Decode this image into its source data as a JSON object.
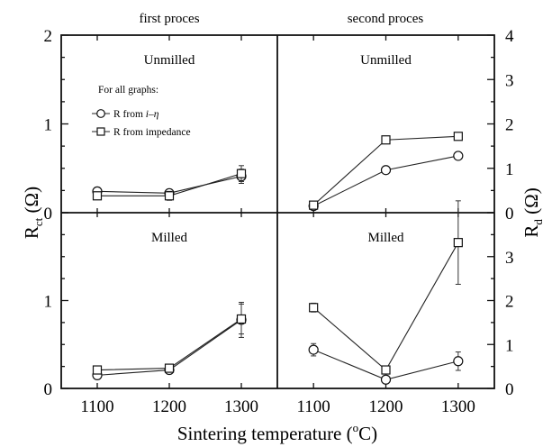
{
  "chart_data": {
    "type": "line",
    "xlabel": "Sintering temperature (°C)",
    "xlabel_main": "Sintering temperature (",
    "xlabel_sup": "o",
    "xlabel_tail": "C)",
    "ylabel_left": "R",
    "ylabel_left_sub": "ct",
    "ylabel_left_unit": " (Ω)",
    "ylabel_right": "R",
    "ylabel_right_sub": "d",
    "ylabel_right_unit": " (Ω)",
    "x_ticks": [
      "1100",
      "1200",
      "1300"
    ],
    "x_values": [
      1100,
      1200,
      1300
    ],
    "xlim": [
      1050,
      1350
    ],
    "column_titles": [
      "first proces",
      "second proces"
    ],
    "legend": {
      "title": "For all graphs:",
      "placement": "upper-left panel",
      "entries": [
        {
          "marker": "circle",
          "label_prefix": "R from ",
          "label_italic": "i–η"
        },
        {
          "marker": "square",
          "label_prefix": "R from impedance",
          "label_italic": ""
        }
      ]
    },
    "panels": [
      {
        "title": "Unmilled",
        "column": "first proces",
        "axis": "left",
        "ylim": [
          0,
          1
        ],
        "series": [
          {
            "marker": "circle",
            "values": [
              0.24,
              0.22,
              0.41
            ],
            "errors": [
              0.04,
              0.04,
              0.08
            ]
          },
          {
            "marker": "square",
            "values": [
              0.19,
              0.19,
              0.44
            ],
            "errors": [
              0.04,
              0.05,
              0.09
            ]
          }
        ]
      },
      {
        "title": "Unmilled",
        "column": "second proces",
        "axis": "right",
        "ylim": [
          0,
          2
        ],
        "series": [
          {
            "marker": "circle",
            "values": [
              0.15,
              0.96,
              1.28
            ],
            "errors": [
              0.03,
              0.03,
              0.03
            ]
          },
          {
            "marker": "square",
            "values": [
              0.17,
              1.64,
              1.72
            ],
            "errors": [
              0.03,
              0.05,
              0.05
            ]
          }
        ]
      },
      {
        "title": "Milled",
        "column": "first proces",
        "axis": "left",
        "ylim": [
          0,
          1
        ],
        "series": [
          {
            "marker": "circle",
            "values": [
              0.15,
              0.21,
              0.78
            ],
            "errors": [
              0.03,
              0.03,
              0.2
            ]
          },
          {
            "marker": "square",
            "values": [
              0.21,
              0.23,
              0.79
            ],
            "errors": [
              0.03,
              0.03,
              0.17
            ]
          }
        ]
      },
      {
        "title": "Milled",
        "column": "second proces",
        "axis": "right",
        "ylim": [
          0,
          4
        ],
        "series": [
          {
            "marker": "circle",
            "values": [
              0.88,
              0.2,
              0.62
            ],
            "errors": [
              0.14,
              0.05,
              0.21
            ]
          },
          {
            "marker": "square",
            "values": [
              1.84,
              0.42,
              3.32
            ],
            "errors": [
              0.1,
              0.06,
              0.95
            ]
          }
        ]
      }
    ],
    "y_ticks_left_top": [
      "1",
      "2"
    ],
    "y_ticks_left_bottom": [
      "0",
      "1"
    ],
    "y_ticks_right_top": [
      "0",
      "1",
      "2",
      "3",
      "4"
    ],
    "y_ticks_right_bottom": [
      "0",
      "1",
      "2",
      "3"
    ],
    "colors": {
      "ink": "#111111",
      "background": "#ffffff"
    }
  }
}
